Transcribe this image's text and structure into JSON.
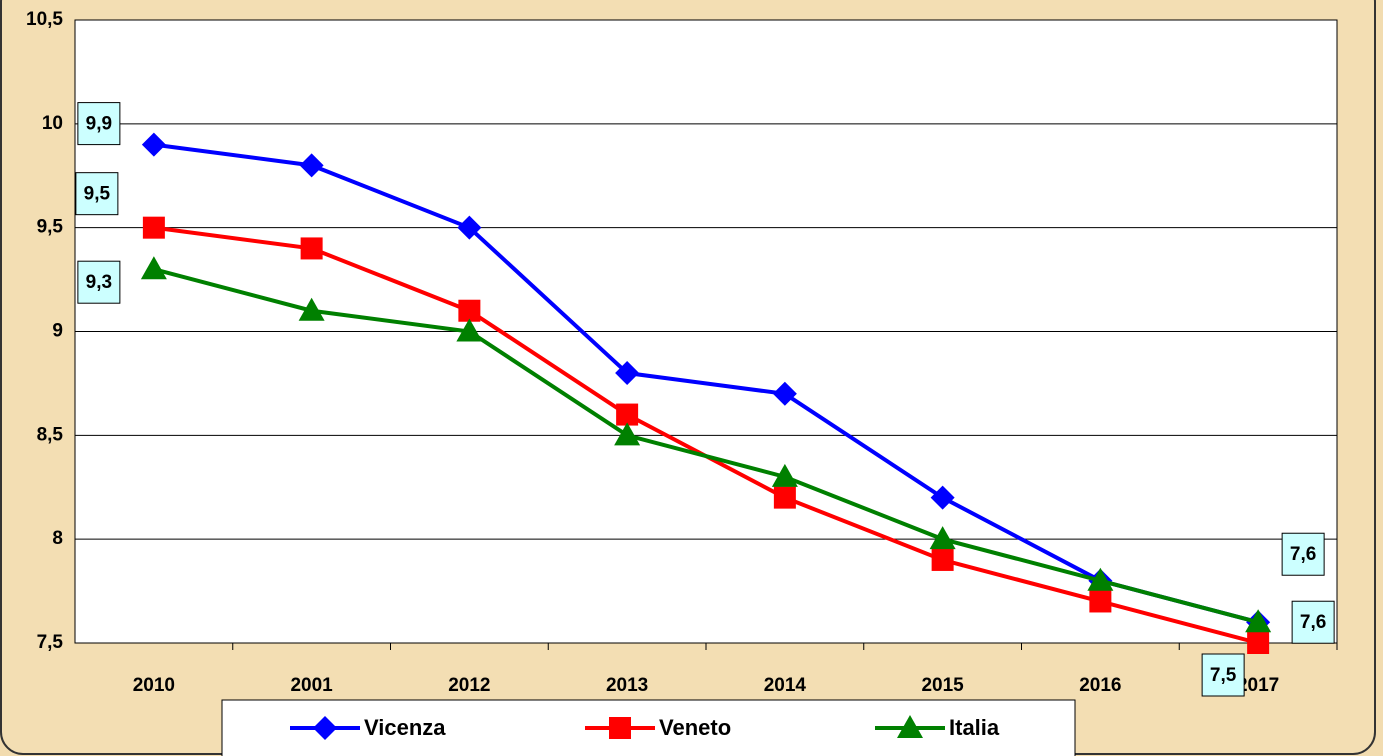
{
  "chart_data": {
    "type": "line",
    "categories": [
      "2010",
      "2001",
      "2012",
      "2013",
      "2014",
      "2015",
      "2016",
      "2017"
    ],
    "series": [
      {
        "name": "Vicenza",
        "color": "#0000ff",
        "marker": "diamond",
        "values": [
          9.9,
          9.8,
          9.5,
          8.8,
          8.7,
          8.2,
          7.8,
          7.6
        ],
        "value_labels": [
          "9,9",
          null,
          null,
          null,
          null,
          null,
          null,
          "7,6"
        ]
      },
      {
        "name": "Veneto",
        "color": "#ff0000",
        "marker": "square",
        "values": [
          9.5,
          9.4,
          9.1,
          8.6,
          8.2,
          7.9,
          7.7,
          7.5
        ],
        "value_labels": [
          "9,5",
          null,
          null,
          null,
          null,
          null,
          null,
          "7,5"
        ]
      },
      {
        "name": "Italia",
        "color": "#008000",
        "marker": "triangle",
        "values": [
          9.3,
          9.1,
          9.0,
          8.5,
          8.3,
          8.0,
          7.8,
          7.6
        ],
        "value_labels": [
          "9,3",
          null,
          null,
          null,
          null,
          null,
          null,
          "7,6"
        ]
      }
    ],
    "ylim": [
      7.5,
      10.5
    ],
    "yticks": [
      {
        "value": 7.5,
        "label": "7,5"
      },
      8,
      {
        "value": 8.5,
        "label": "8,5"
      },
      9,
      {
        "value": 9.5,
        "label": "9,5"
      },
      10,
      {
        "value": 10.5,
        "label": "10,5"
      }
    ],
    "grid": true,
    "legend": "bottom"
  }
}
